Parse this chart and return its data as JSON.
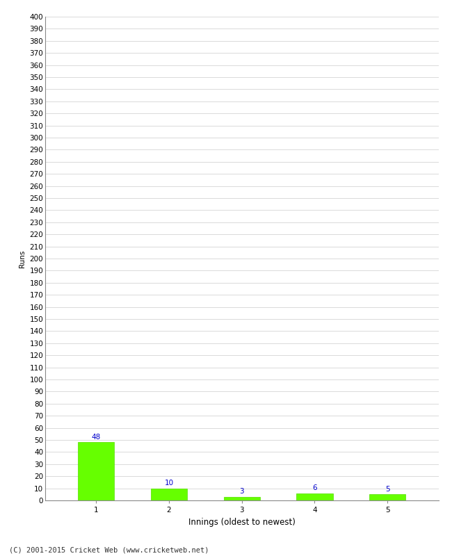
{
  "categories": [
    1,
    2,
    3,
    4,
    5
  ],
  "values": [
    48,
    10,
    3,
    6,
    5
  ],
  "bar_color": "#66ff00",
  "bar_edge_color": "#55dd00",
  "value_label_color": "#0000cc",
  "xlabel": "Innings (oldest to newest)",
  "ylabel": "Runs",
  "ylim": [
    0,
    400
  ],
  "background_color": "#ffffff",
  "grid_color": "#cccccc",
  "footer_text": "(C) 2001-2015 Cricket Web (www.cricketweb.net)",
  "value_fontsize": 7.5,
  "axis_label_fontsize": 8.5,
  "tick_label_fontsize": 7.5,
  "footer_fontsize": 7.5,
  "ylabel_fontsize": 7.5
}
